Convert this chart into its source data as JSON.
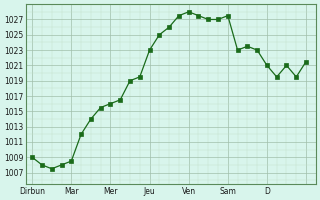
{
  "x_values": [
    0,
    0.5,
    1,
    1.5,
    2,
    2.5,
    3,
    3.5,
    4,
    4.5,
    5,
    5.5,
    6,
    6.5,
    7,
    7.5,
    8,
    8.5,
    9,
    9.5,
    10,
    10.5,
    11,
    11.5,
    12,
    12.5,
    13,
    13.5,
    14
  ],
  "y_values": [
    1009,
    1008,
    1007.5,
    1008,
    1008.5,
    1012,
    1014,
    1015.5,
    1016,
    1016.5,
    1019,
    1019.5,
    1023,
    1025,
    1026,
    1027.5,
    1028,
    1027.5,
    1027,
    1027,
    1027.5,
    1023,
    1023.5,
    1023,
    1021,
    1019.5,
    1021,
    1019.5,
    1021.5
  ],
  "x_major_tick_pos": [
    0,
    2,
    4,
    6,
    8,
    10,
    12,
    14
  ],
  "x_tick_labels": [
    "Dirbun",
    "Mar",
    "Mer",
    "Jeu",
    "Ven",
    "Sam",
    "D",
    ""
  ],
  "y_tick_start": 1007,
  "y_tick_end": 1027,
  "y_tick_step": 2,
  "ylim": [
    1005.5,
    1029
  ],
  "xlim": [
    -0.3,
    14.5
  ],
  "line_color": "#1a6b1a",
  "marker_color": "#1a6b1a",
  "bg_color": "#d8f5ec",
  "grid_color_major": "#a0bfaa",
  "grid_color_minor": "#c0deca"
}
